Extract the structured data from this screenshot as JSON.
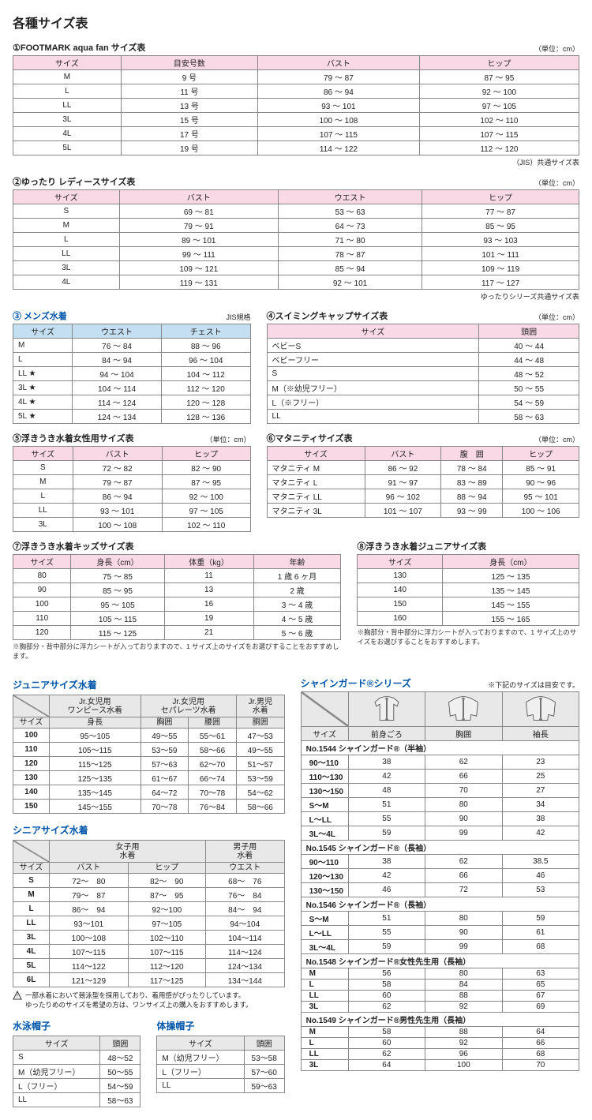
{
  "page_title": "各種サイズ表",
  "unit_label": "（単位：cm）",
  "tables": {
    "t1": {
      "title": "①FOOTMARK aqua fan サイズ表",
      "headers": [
        "サイズ",
        "目安号数",
        "バスト",
        "ヒップ"
      ],
      "rows": [
        [
          "M",
          "9 号",
          "79 ～ 87",
          "87 ～ 95"
        ],
        [
          "L",
          "11 号",
          "86 ～ 94",
          "92 ～ 100"
        ],
        [
          "LL",
          "13 号",
          "93 ～ 101",
          "97 ～ 105"
        ],
        [
          "3L",
          "15 号",
          "100 ～ 108",
          "102 ～ 110"
        ],
        [
          "4L",
          "17 号",
          "107 ～ 115",
          "107 ～ 115"
        ],
        [
          "5L",
          "19 号",
          "114 ～ 122",
          "112 ～ 120"
        ]
      ],
      "note": "（JIS）共通サイズ表"
    },
    "t2": {
      "title": "②ゆったり レディースサイズ表",
      "headers": [
        "サイズ",
        "バスト",
        "ウエスト",
        "ヒップ"
      ],
      "rows": [
        [
          "S",
          "69 ～ 81",
          "53 ～ 63",
          "77 ～ 87"
        ],
        [
          "M",
          "79 ～ 91",
          "64 ～ 73",
          "85 ～ 95"
        ],
        [
          "L",
          "89 ～ 101",
          "71 ～ 80",
          "93 ～ 103"
        ],
        [
          "LL",
          "99 ～ 111",
          "78 ～ 87",
          "101 ～ 111"
        ],
        [
          "3L",
          "109 ～ 121",
          "85 ～ 94",
          "109 ～ 119"
        ],
        [
          "4L",
          "119 ～ 131",
          "92 ～ 101",
          "117 ～ 127"
        ]
      ],
      "note": "ゆったりシリーズ共通サイズ表"
    },
    "t3": {
      "title": "③ メンズ水着",
      "jis": "JIS規格",
      "headers": [
        "サイズ",
        "ウエスト",
        "チェスト"
      ],
      "rows": [
        [
          "M",
          "76 ～ 84",
          "88 ～ 96"
        ],
        [
          "L",
          "84 ～ 94",
          "96 ～ 104"
        ],
        [
          "LL ★",
          "94 ～ 104",
          "104 ～ 112"
        ],
        [
          "3L ★",
          "104 ～ 114",
          "112 ～ 120"
        ],
        [
          "4L ★",
          "114 ～ 124",
          "120 ～ 128"
        ],
        [
          "5L ★",
          "124 ～ 134",
          "128 ～ 136"
        ]
      ]
    },
    "t4": {
      "title": "④スイミングキャップサイズ表",
      "headers": [
        "サイズ",
        "頭囲"
      ],
      "rows": [
        [
          "ベビーS",
          "40 ～ 44"
        ],
        [
          "ベビーフリー",
          "44 ～ 48"
        ],
        [
          "S",
          "48 ～ 52"
        ],
        [
          "M（※幼児フリー）",
          "50 ～ 55"
        ],
        [
          "L（※フリー）",
          "54 ～ 59"
        ],
        [
          "LL",
          "58 ～ 63"
        ]
      ]
    },
    "t5": {
      "title": "⑤浮きうき水着女性用サイズ表",
      "headers": [
        "サイズ",
        "バスト",
        "ヒップ"
      ],
      "rows": [
        [
          "S",
          "72 ～ 82",
          "82 ～ 90"
        ],
        [
          "M",
          "79 ～ 87",
          "87 ～ 95"
        ],
        [
          "L",
          "86 ～ 94",
          "92 ～ 100"
        ],
        [
          "LL",
          "93 ～ 101",
          "97 ～ 105"
        ],
        [
          "3L",
          "100 ～ 108",
          "102 ～ 110"
        ]
      ]
    },
    "t6": {
      "title": "⑥マタニティサイズ表",
      "headers": [
        "サイズ",
        "バスト",
        "腹　囲",
        "ヒップ"
      ],
      "rows": [
        [
          "マタニティ M",
          "86 ～ 92",
          "78 ～ 84",
          "85 ～ 91"
        ],
        [
          "マタニティ L",
          "91 ～ 97",
          "83 ～ 89",
          "90 ～ 96"
        ],
        [
          "マタニティ LL",
          "96 ～ 102",
          "88 ～ 94",
          "95 ～ 101"
        ],
        [
          "マタニティ 3L",
          "101 ～ 107",
          "93 ～ 99",
          "100 ～ 106"
        ]
      ]
    },
    "t7": {
      "title": "⑦浮きうき水着キッズサイズ表",
      "headers": [
        "サイズ",
        "身長（cm）",
        "体重（kg）",
        "年齢"
      ],
      "rows": [
        [
          "80",
          "75 ～ 85",
          "11",
          "1 歳 6 ヶ月"
        ],
        [
          "90",
          "85 ～ 95",
          "13",
          "2 歳"
        ],
        [
          "100",
          "95 ～ 105",
          "16",
          "3 ～ 4 歳"
        ],
        [
          "110",
          "105 ～ 115",
          "19",
          "4 ～ 5 歳"
        ],
        [
          "120",
          "115 ～ 125",
          "21",
          "5 ～ 6 歳"
        ]
      ],
      "note": "※胸部分・背中部分に浮力シートが入っておりますので、1 サイズ上のサイズをお選びすることをおすすめします。"
    },
    "t8": {
      "title": "⑧浮きうき水着ジュニアサイズ表",
      "headers": [
        "サイズ",
        "身長（cm）"
      ],
      "rows": [
        [
          "130",
          "125 ～ 135"
        ],
        [
          "140",
          "135 ～ 145"
        ],
        [
          "150",
          "145 ～ 155"
        ],
        [
          "160",
          "155 ～ 165"
        ]
      ],
      "note": "※胸部分・背中部分に浮力シートが入っておりますので、1 サイズ上のサイズをお選びすることをおすすめします。"
    },
    "junior": {
      "title": "ジュニアサイズ水着",
      "top1": "Jr.女児用\nワンピース水着",
      "top2": "Jr.女児用\nセパレーツ水着",
      "top3": "Jr.男児\n水着",
      "headers": [
        "サイズ",
        "身長",
        "胸囲",
        "腰囲",
        "胴囲"
      ],
      "rows": [
        [
          "100",
          "95～105",
          "49～55",
          "55～61",
          "47～53"
        ],
        [
          "110",
          "105～115",
          "53～59",
          "58～66",
          "49～55"
        ],
        [
          "120",
          "115～125",
          "57～63",
          "62～70",
          "51～57"
        ],
        [
          "130",
          "125～135",
          "61～67",
          "66～74",
          "53～59"
        ],
        [
          "140",
          "135～145",
          "64～72",
          "70～78",
          "54～62"
        ],
        [
          "150",
          "145～155",
          "70～78",
          "76～84",
          "58～66"
        ]
      ]
    },
    "senior": {
      "title": "シニアサイズ水着",
      "top1": "女子用\n水着",
      "top2": "男子用\n水着",
      "headers": [
        "サイズ",
        "バスト",
        "ヒップ",
        "ウエスト"
      ],
      "rows": [
        [
          "S",
          "72～　80",
          "82～　90",
          "68～　76"
        ],
        [
          "M",
          "79～　87",
          "87～　95",
          "76～　84"
        ],
        [
          "L",
          "86～　94",
          "92～100",
          "84～　94"
        ],
        [
          "LL",
          "93～101",
          "97～105",
          "94～104"
        ],
        [
          "3L",
          "100～108",
          "102～110",
          "104～114"
        ],
        [
          "4L",
          "107～115",
          "107～115",
          "114～124"
        ],
        [
          "5L",
          "114～122",
          "112～120",
          "124～134"
        ],
        [
          "6L",
          "121～129",
          "117～125",
          "134～144"
        ]
      ],
      "warn": "一部水着において競泳型を採用しており、着用感がぴったりしています。\nゆったりめのサイズを希望の方は、ワンサイズ上の購入をおすすめします。"
    },
    "swimcap": {
      "title": "水泳帽子",
      "headers": [
        "サイズ",
        "頭囲"
      ],
      "rows": [
        [
          "S",
          "48～52"
        ],
        [
          "M（幼児フリー）",
          "50～55"
        ],
        [
          "L（フリー）",
          "54～59"
        ],
        [
          "LL",
          "58～63"
        ]
      ]
    },
    "gymcap": {
      "title": "体操帽子",
      "headers": [
        "サイズ",
        "頭囲"
      ],
      "rows": [
        [
          "M（幼児フリー）",
          "53～58"
        ],
        [
          "L（フリー）",
          "57～60"
        ],
        [
          "LL",
          "59～63"
        ]
      ]
    },
    "shine": {
      "title": "シャインガード®シリーズ",
      "note": "※下記のサイズは目安です。",
      "headers": [
        "サイズ",
        "前身ごろ",
        "胸囲",
        "袖長"
      ],
      "sections": [
        {
          "label": "No.1544 シャインガード®（半袖）",
          "rows": [
            [
              "90～110",
              "38",
              "62",
              "23"
            ],
            [
              "110～130",
              "42",
              "66",
              "25"
            ],
            [
              "130～150",
              "48",
              "70",
              "27"
            ],
            [
              "S～M",
              "51",
              "80",
              "34"
            ],
            [
              "L～LL",
              "55",
              "90",
              "38"
            ],
            [
              "3L～4L",
              "59",
              "99",
              "42"
            ]
          ]
        },
        {
          "label": "No.1545 シャインガード®（長袖）",
          "rows": [
            [
              "90～110",
              "38",
              "62",
              "38.5"
            ],
            [
              "120～130",
              "42",
              "66",
              "46"
            ],
            [
              "130～150",
              "46",
              "72",
              "53"
            ]
          ]
        },
        {
          "label": "No.1546 シャインガード®（長袖）",
          "rows": [
            [
              "S～M",
              "51",
              "80",
              "59"
            ],
            [
              "L～LL",
              "55",
              "90",
              "61"
            ],
            [
              "3L～4L",
              "59",
              "99",
              "68"
            ]
          ]
        },
        {
          "label": "No.1548 シャインガード®女性先生用（長袖）",
          "rows": [
            [
              "M",
              "56",
              "80",
              "63"
            ],
            [
              "L",
              "58",
              "84",
              "65"
            ],
            [
              "LL",
              "60",
              "88",
              "67"
            ],
            [
              "3L",
              "62",
              "92",
              "69"
            ]
          ]
        },
        {
          "label": "No.1549 シャインガード®男性先生用（長袖）",
          "rows": [
            [
              "M",
              "58",
              "88",
              "64"
            ],
            [
              "L",
              "60",
              "92",
              "66"
            ],
            [
              "LL",
              "62",
              "96",
              "68"
            ],
            [
              "3L",
              "64",
              "100",
              "70"
            ]
          ]
        }
      ]
    }
  }
}
